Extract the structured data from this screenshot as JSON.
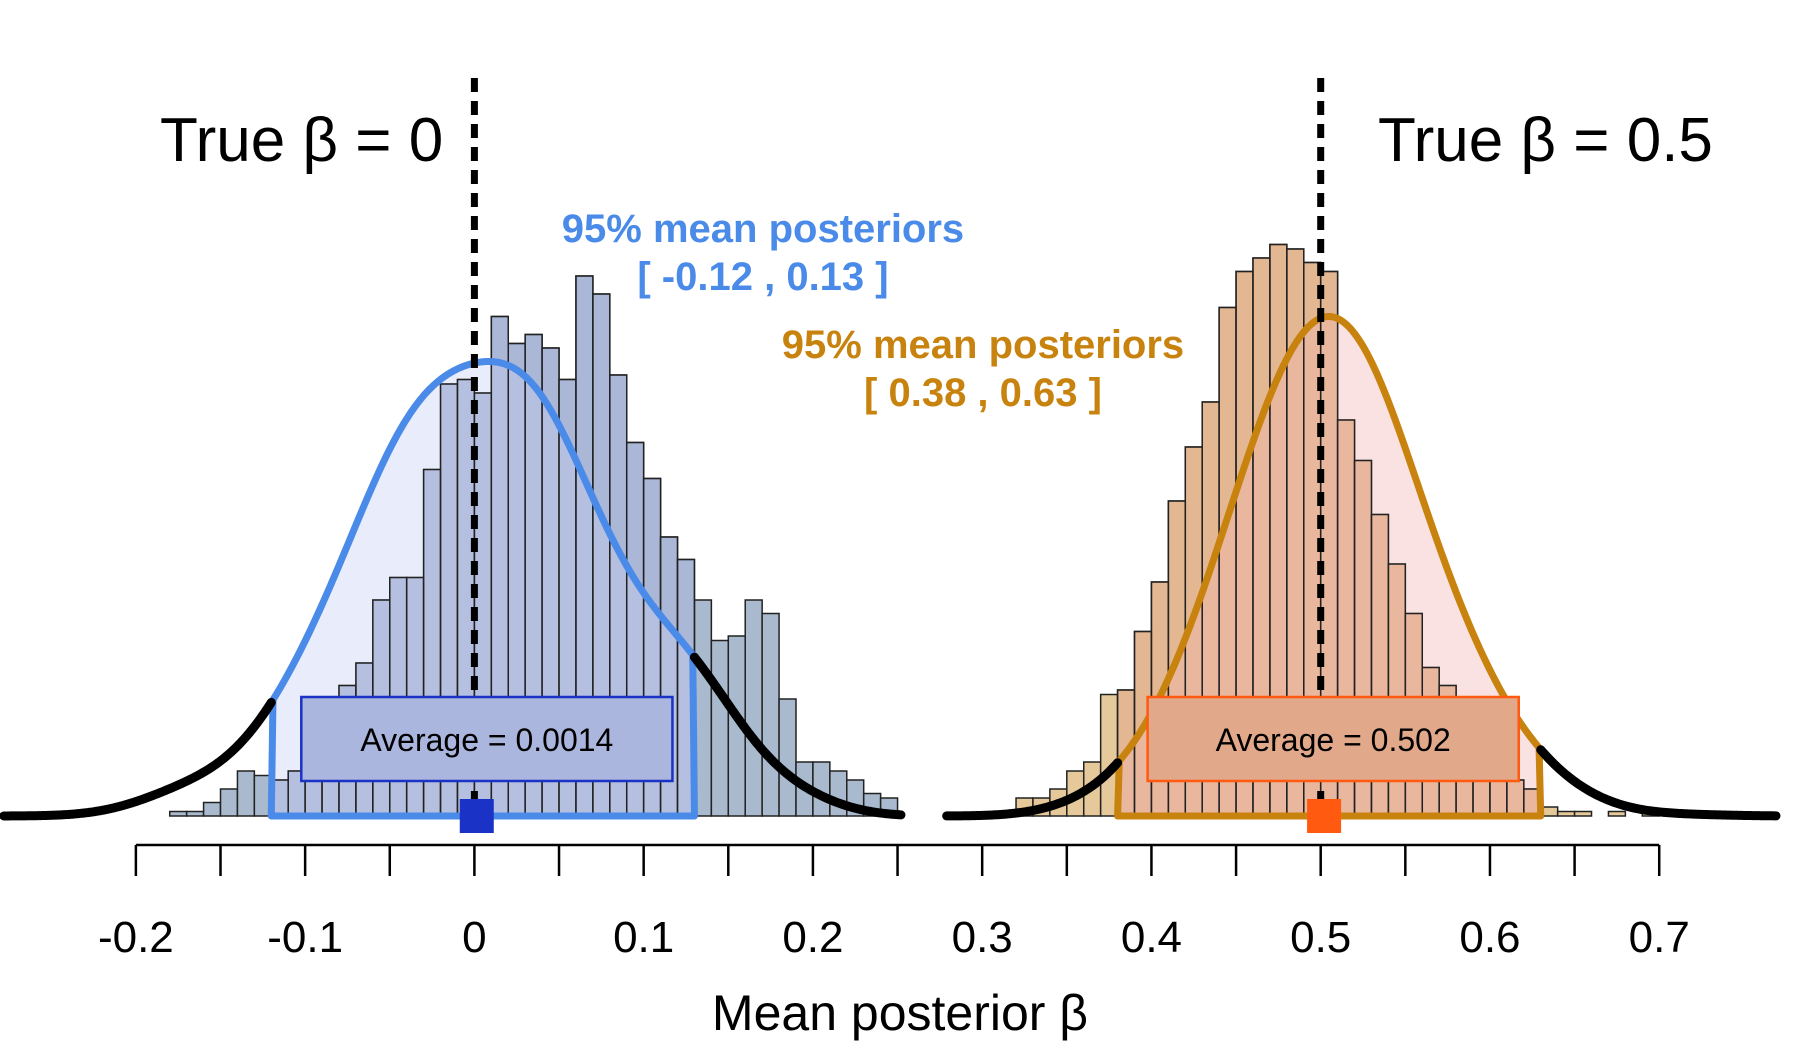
{
  "chart_data": {
    "type": "histogram",
    "title": "",
    "xlabel": "Mean posterior β",
    "ylabel": "",
    "xlim": [
      -0.23,
      0.74
    ],
    "xticks": [
      -0.2,
      -0.1,
      0,
      0.1,
      0.2,
      0.3,
      0.4,
      0.5,
      0.6,
      0.7
    ],
    "xtick_labels": [
      "-0.2",
      "-0.1",
      "0",
      "0.1",
      "0.2",
      "0.3",
      "0.4",
      "0.5",
      "0.6",
      "0.7"
    ],
    "grid": false,
    "bin_width": 0.01,
    "series": [
      {
        "label": "True β = 0",
        "true_beta": 0,
        "bin_start": -0.18,
        "counts": [
          1,
          1,
          3,
          6,
          10,
          9,
          8,
          10,
          15,
          20,
          29,
          34,
          48,
          53,
          53,
          77,
          96,
          97,
          94,
          111,
          105,
          107,
          104,
          97,
          120,
          116,
          98,
          83,
          75,
          62,
          57,
          48,
          39,
          40,
          48,
          45,
          26,
          12,
          12,
          10,
          8,
          5,
          4
        ],
        "kde_peak_x": 0.008,
        "kde_peak": 101,
        "ci_title": "95% mean posteriors",
        "ci_range_label": "[ -0.12 , 0.13 ]",
        "ci": [
          -0.12,
          0.13
        ],
        "average_label": "Average =  0.0014",
        "average": 0.0014,
        "hist_fill": "#A9B9CE",
        "kde_color": "#4A8AE8",
        "ci_fill": "#D7DCF5",
        "ci_edge": "#4A8AE8",
        "box_fill": "#ABB6DE",
        "box_edge": "#1A32C6",
        "marker_color": "#1A32C6",
        "ci_text_color": "#4A8AE8"
      },
      {
        "label": "True β = 0.5",
        "true_beta": 0.5,
        "bin_start": 0.31,
        "counts": [
          1,
          4,
          4,
          6,
          10,
          12,
          27,
          28,
          41,
          52,
          70,
          82,
          92,
          113,
          121,
          124,
          127,
          126,
          123,
          121,
          88,
          79,
          67,
          56,
          45,
          33,
          29,
          20,
          15,
          10,
          8,
          6,
          2,
          1,
          1,
          0,
          1,
          0,
          1
        ],
        "kde_peak_x": 0.505,
        "kde_peak": 111,
        "ci_title": "95% mean posteriors",
        "ci_range_label": "[ 0.38 , 0.63 ]",
        "ci": [
          0.38,
          0.63
        ],
        "average_label": "Average =  0.502",
        "average": 0.502,
        "hist_fill": "#E5C99B",
        "kde_color": "#C8820E",
        "ci_fill": "#F7CACA",
        "ci_edge": "#C8820E",
        "box_fill": "#E2A88A",
        "box_edge": "#FF5A0F",
        "marker_color": "#FF5A0F",
        "ci_text_color": "#C8820E"
      }
    ]
  }
}
